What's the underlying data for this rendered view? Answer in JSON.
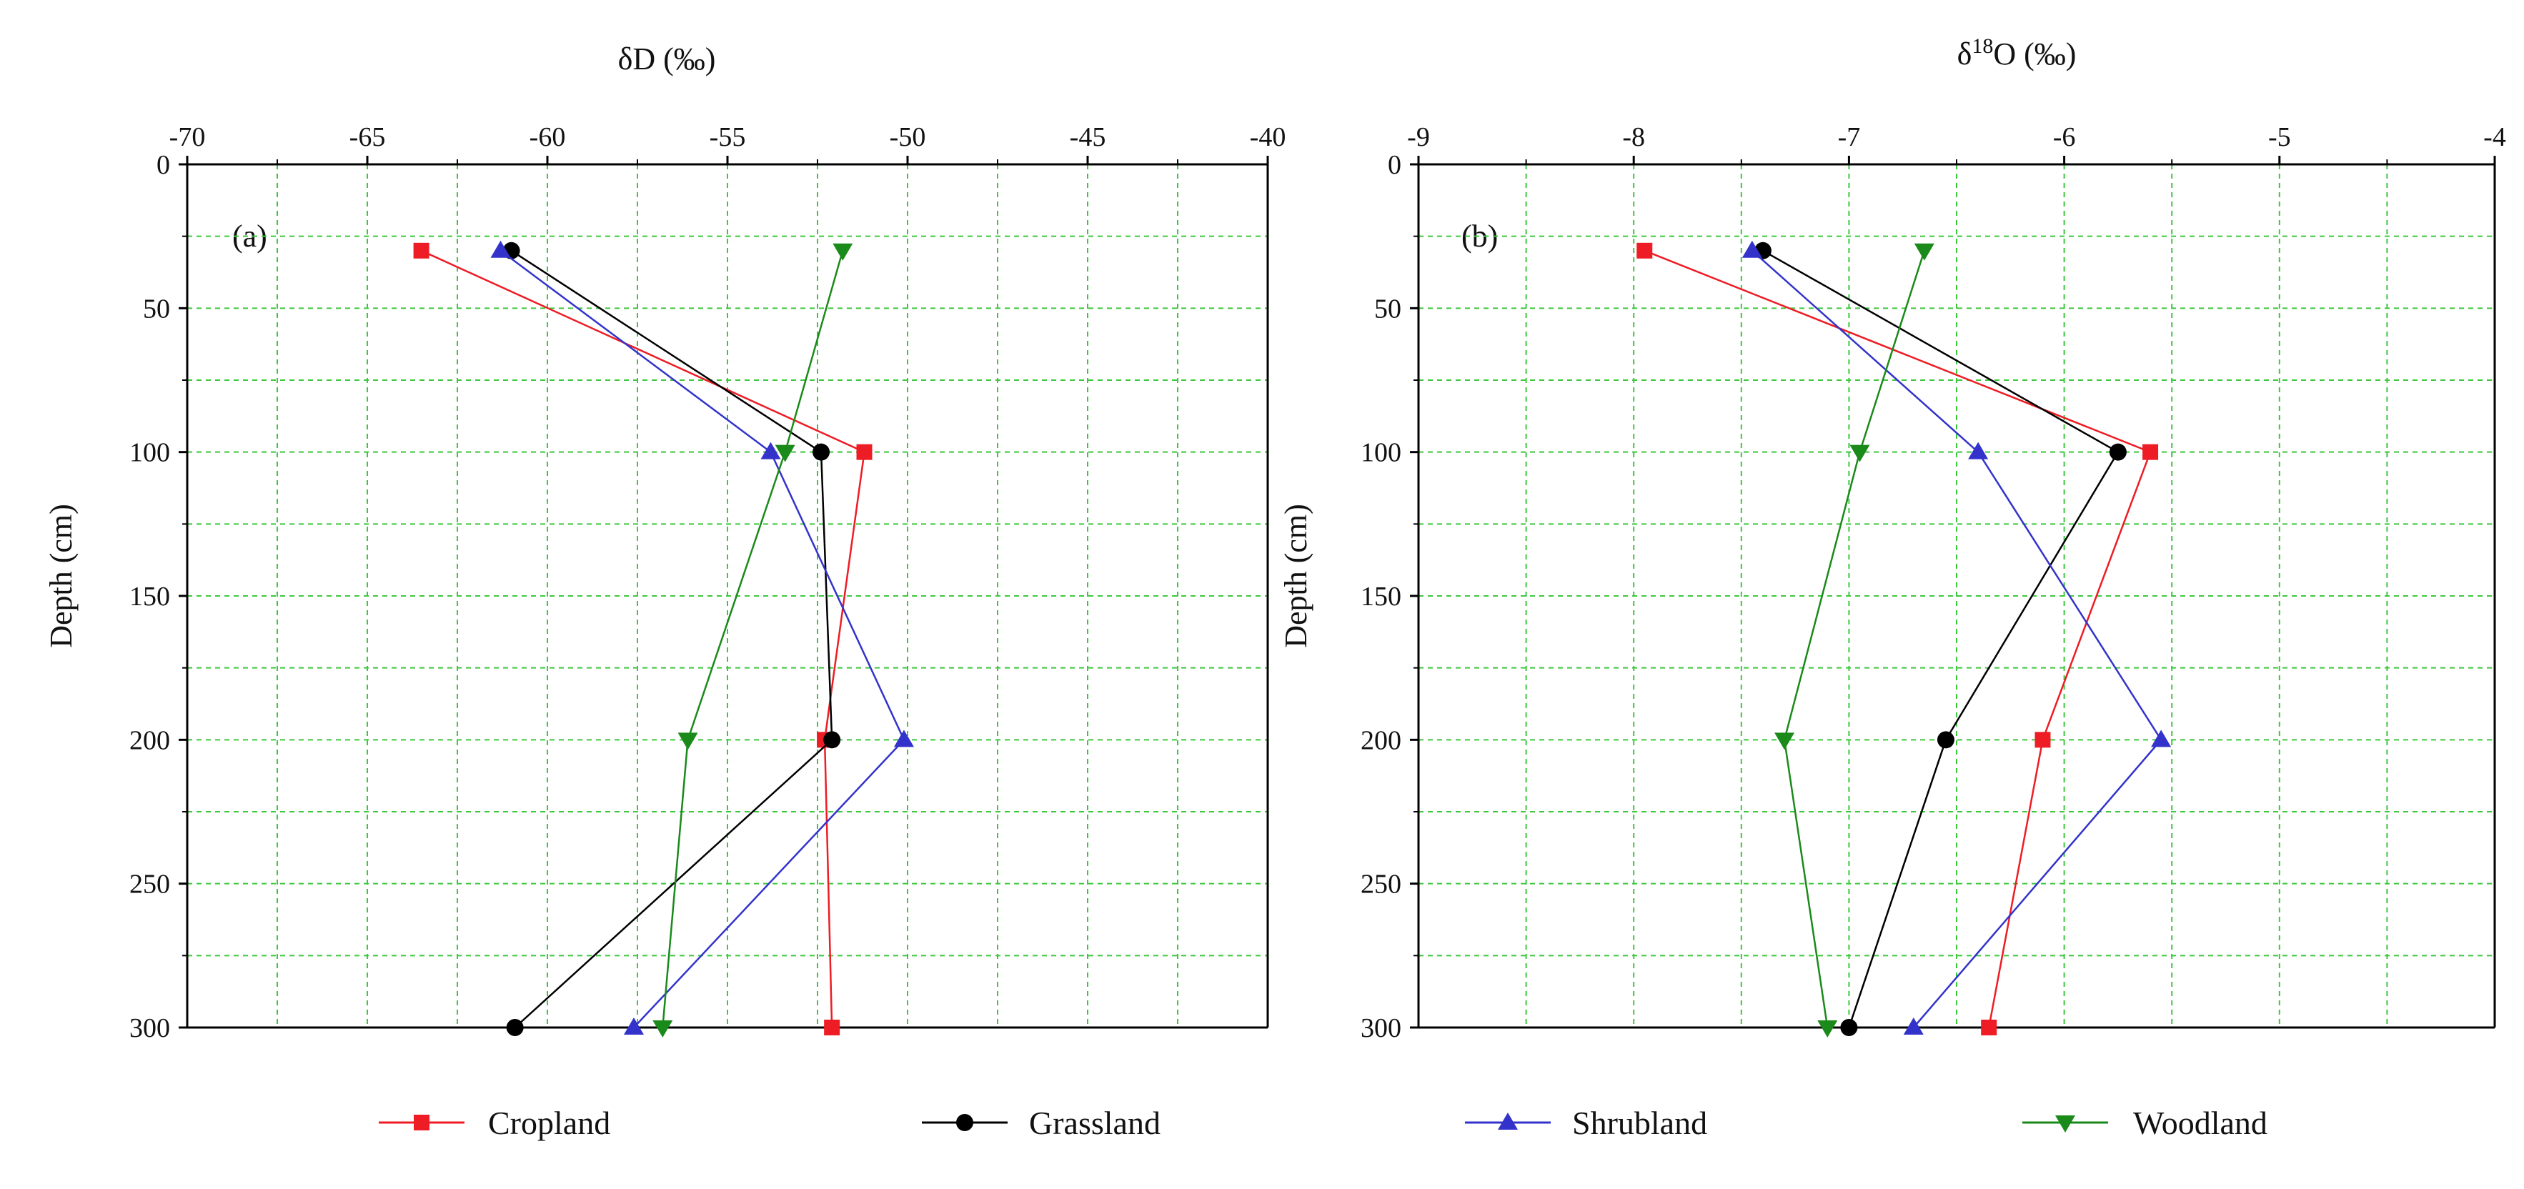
{
  "chart_data": [
    {
      "type": "line",
      "panel_label": "(a)",
      "title": "",
      "xlabel": "δD (‰)",
      "xlabel_parts": {
        "base": "δD (‰)",
        "sup": ""
      },
      "ylabel": "Depth (cm)",
      "xlim": [
        -70,
        -40
      ],
      "ylim": [
        0,
        300
      ],
      "y_inverted": true,
      "x_axis_position": "top",
      "x_ticks": [
        -70,
        -65,
        -60,
        -55,
        -50,
        -45,
        -40
      ],
      "x_tick_labels": [
        "-70",
        "-65",
        "-60",
        "-55",
        "-50",
        "-45",
        "-40"
      ],
      "y_ticks": [
        0,
        50,
        100,
        150,
        200,
        250,
        300
      ],
      "y_tick_labels": [
        "0",
        "50",
        "100",
        "150",
        "200",
        "250",
        "300"
      ],
      "grid": true,
      "depths": [
        30,
        100,
        200,
        300
      ],
      "series": [
        {
          "name": "Cropland",
          "values": [
            -63.5,
            -51.2,
            -52.3,
            -52.1
          ]
        },
        {
          "name": "Grassland",
          "values": [
            -61.0,
            -52.4,
            -52.1,
            -60.9
          ]
        },
        {
          "name": "Shrubland",
          "values": [
            -61.3,
            -53.8,
            -50.1,
            -57.6
          ]
        },
        {
          "name": "Woodland",
          "values": [
            -51.8,
            -53.4,
            -56.1,
            -56.8
          ]
        }
      ]
    },
    {
      "type": "line",
      "panel_label": "(b)",
      "title": "",
      "xlabel": "δ18O (‰)",
      "xlabel_parts": {
        "base": "δ",
        "sup": "18",
        "rest": "O (‰)"
      },
      "ylabel": "Depth (cm)",
      "xlim": [
        -9,
        -4
      ],
      "ylim": [
        0,
        300
      ],
      "y_inverted": true,
      "x_axis_position": "top",
      "x_ticks": [
        -9,
        -8,
        -7,
        -6,
        -5,
        -4
      ],
      "x_tick_labels": [
        "-9",
        "-8",
        "-7",
        "-6",
        "-5",
        "-4"
      ],
      "y_ticks": [
        0,
        50,
        100,
        150,
        200,
        250,
        300
      ],
      "y_tick_labels": [
        "0",
        "50",
        "100",
        "150",
        "200",
        "250",
        "300"
      ],
      "grid": true,
      "depths": [
        30,
        100,
        200,
        300
      ],
      "series": [
        {
          "name": "Cropland",
          "values": [
            -7.95,
            -5.6,
            -6.1,
            -6.35
          ]
        },
        {
          "name": "Grassland",
          "values": [
            -7.4,
            -5.75,
            -6.55,
            -7.0
          ]
        },
        {
          "name": "Shrubland",
          "values": [
            -7.45,
            -6.4,
            -5.55,
            -6.7
          ]
        },
        {
          "name": "Woodland",
          "values": [
            -6.65,
            -6.95,
            -7.3,
            -7.1
          ]
        }
      ]
    }
  ],
  "legend": {
    "position": "bottom",
    "items": [
      {
        "name": "Cropland",
        "color": "#ee1c24",
        "marker": "square"
      },
      {
        "name": "Grassland",
        "color": "#000000",
        "marker": "circle"
      },
      {
        "name": "Shrubland",
        "color": "#3333cc",
        "marker": "triangle-up"
      },
      {
        "name": "Woodland",
        "color": "#1a8a1a",
        "marker": "triangle-down"
      }
    ]
  },
  "colors": {
    "grid": "#3cc83c",
    "axis": "#000000",
    "background": "#ffffff"
  }
}
